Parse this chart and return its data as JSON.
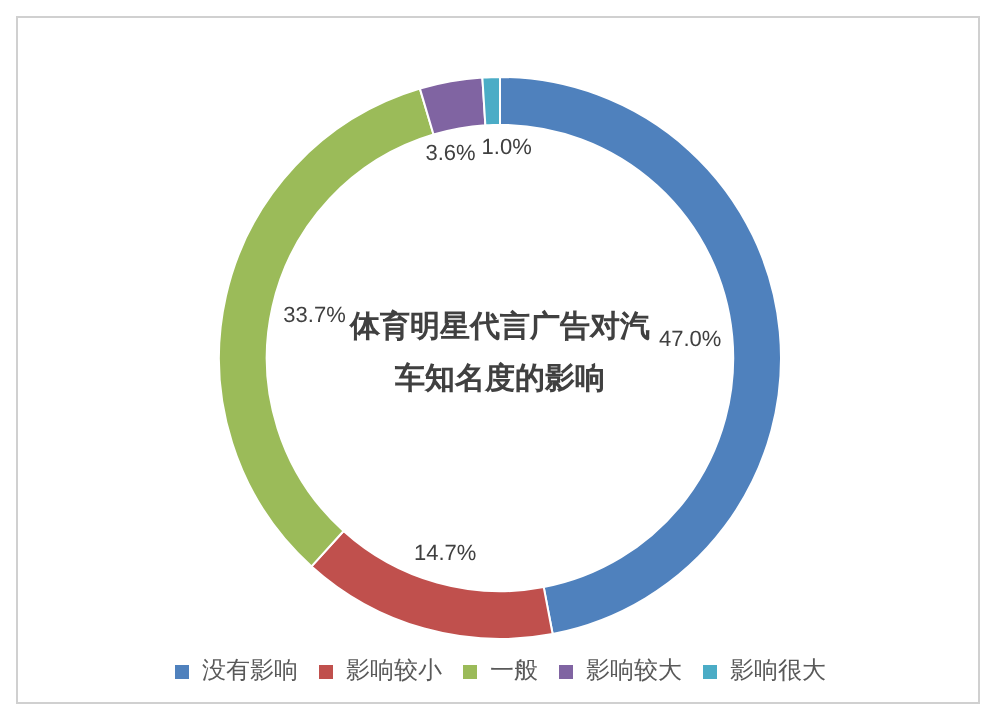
{
  "chart_data": {
    "type": "donut",
    "title": "体育明星代言广告对汽车知名度的影响",
    "categories": [
      "没有影响",
      "影响较小",
      "一般",
      "影响较大",
      "影响很大"
    ],
    "values": [
      47.0,
      14.7,
      33.7,
      3.6,
      1.0
    ],
    "value_labels": [
      "47.0%",
      "14.7%",
      "33.7%",
      "3.6%",
      "1.0%"
    ],
    "colors": [
      "#4f81bd",
      "#c0504d",
      "#9bbb59",
      "#8064a2",
      "#4bacc6"
    ],
    "legend": "bottom"
  }
}
